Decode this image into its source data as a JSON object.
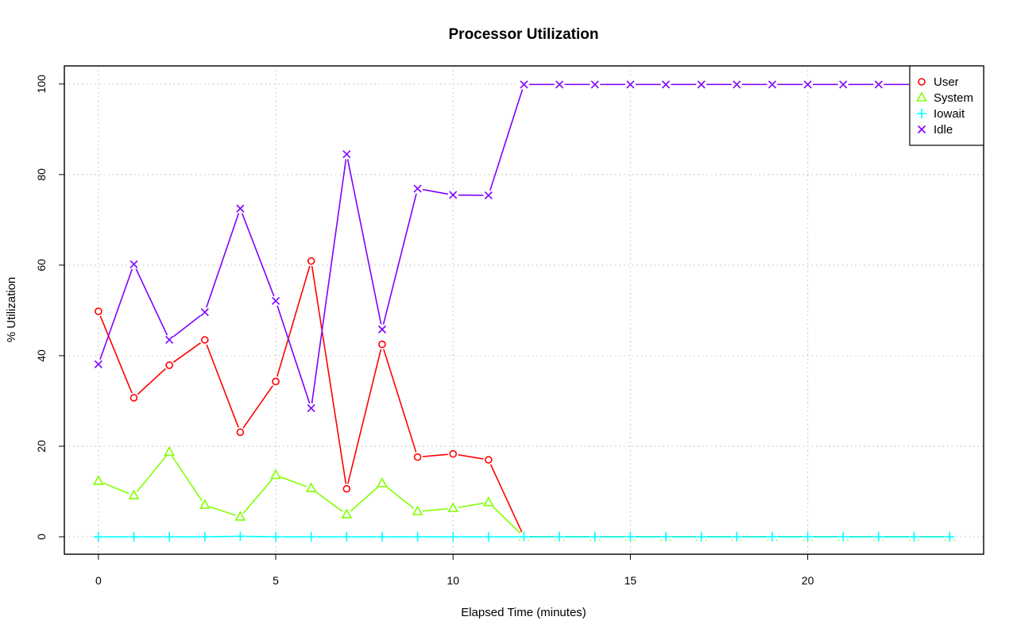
{
  "chart_data": {
    "type": "line",
    "title": "Processor Utilization",
    "xlabel": "Elapsed Time (minutes)",
    "ylabel": "% Utilization",
    "xlim": [
      -0.96,
      24.96
    ],
    "ylim": [
      -3.85,
      104.0
    ],
    "x_ticks": [
      0,
      5,
      10,
      15,
      20
    ],
    "y_ticks": [
      0,
      20,
      40,
      60,
      80,
      100
    ],
    "grid": true,
    "legend_position": "top-right",
    "x": [
      0,
      1,
      2,
      3,
      4,
      5,
      6,
      7,
      8,
      9,
      10,
      11,
      12,
      13,
      14,
      15,
      16,
      17,
      18,
      19,
      20,
      21,
      22,
      23,
      24
    ],
    "series": [
      {
        "name": "User",
        "color": "#ff0000",
        "marker": "circle",
        "values": [
          49.8,
          30.7,
          37.9,
          43.5,
          23.1,
          34.3,
          60.9,
          10.6,
          42.5,
          17.6,
          18.3,
          17.0,
          0,
          0,
          0,
          0,
          0,
          0,
          0,
          0,
          0,
          0,
          0,
          0,
          0
        ]
      },
      {
        "name": "System",
        "color": "#80ff00",
        "marker": "triangle",
        "values": [
          12.3,
          9.1,
          18.7,
          7.0,
          4.4,
          13.6,
          10.7,
          4.9,
          11.8,
          5.6,
          6.3,
          7.6,
          0,
          0,
          0,
          0,
          0,
          0,
          0,
          0,
          0,
          0,
          0,
          0,
          0
        ]
      },
      {
        "name": "Iowait",
        "color": "#00ffff",
        "marker": "plus",
        "values": [
          0,
          0,
          0,
          0,
          0.1,
          0,
          0,
          0,
          0,
          0,
          0,
          0,
          0,
          0,
          0,
          0,
          0,
          0,
          0,
          0,
          0,
          0,
          0,
          0,
          0
        ]
      },
      {
        "name": "Idle",
        "color": "#8000ff",
        "marker": "cross",
        "values": [
          38.1,
          60.2,
          43.5,
          49.6,
          72.5,
          52.1,
          28.4,
          84.5,
          45.8,
          76.9,
          75.5,
          75.4,
          99.9,
          99.9,
          99.9,
          99.9,
          99.9,
          99.9,
          99.9,
          99.9,
          99.9,
          99.9,
          99.9,
          99.9,
          99.9
        ]
      }
    ]
  }
}
